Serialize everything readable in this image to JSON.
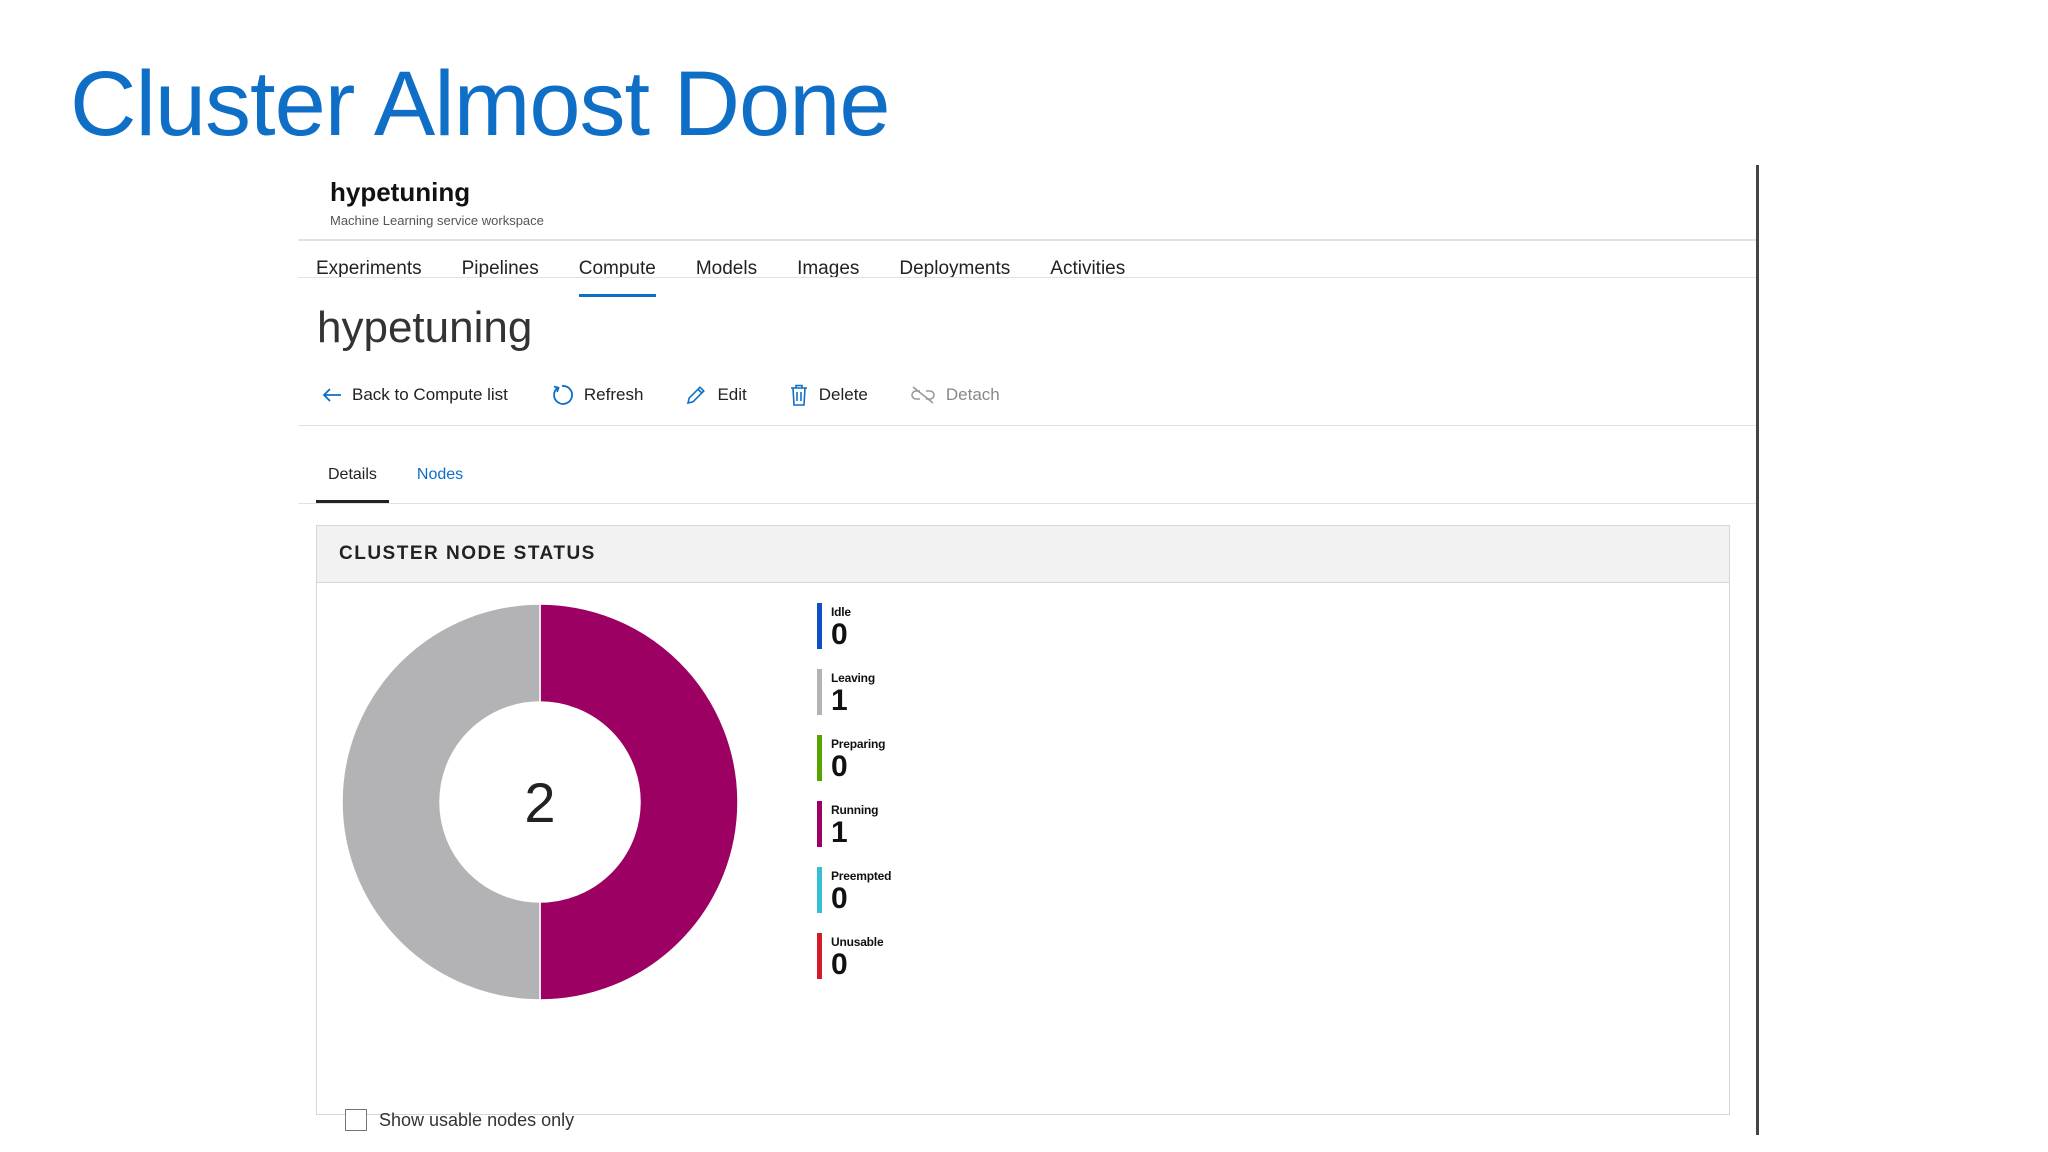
{
  "slide": {
    "title": "Cluster Almost Done"
  },
  "workspace": {
    "name": "hypetuning",
    "subtitle": "Machine Learning service workspace"
  },
  "nav": {
    "items": [
      {
        "label": "Experiments"
      },
      {
        "label": "Pipelines"
      },
      {
        "label": "Compute",
        "active": true
      },
      {
        "label": "Models"
      },
      {
        "label": "Images"
      },
      {
        "label": "Deployments"
      },
      {
        "label": "Activities"
      }
    ]
  },
  "page": {
    "title": "hypetuning"
  },
  "toolbar": {
    "back_label": "Back to Compute list",
    "refresh_label": "Refresh",
    "edit_label": "Edit",
    "delete_label": "Delete",
    "detach_label": "Detach"
  },
  "subtabs": {
    "details": "Details",
    "nodes": "Nodes"
  },
  "card": {
    "title": "CLUSTER NODE STATUS"
  },
  "chart_data": {
    "type": "pie",
    "center_label": "2",
    "slices": [
      {
        "name": "Idle",
        "value": 0,
        "color": "#0f4fc6"
      },
      {
        "name": "Leaving",
        "value": 1,
        "color": "#b3b3b6"
      },
      {
        "name": "Preparing",
        "value": 0,
        "color": "#57a300"
      },
      {
        "name": "Running",
        "value": 1,
        "color": "#9b0062"
      },
      {
        "name": "Preempted",
        "value": 0,
        "color": "#36bed6"
      },
      {
        "name": "Unusable",
        "value": 0,
        "color": "#d41b2c"
      }
    ],
    "legend_position": "right"
  },
  "filter": {
    "show_usable_label": "Show usable nodes only",
    "checked": false
  }
}
